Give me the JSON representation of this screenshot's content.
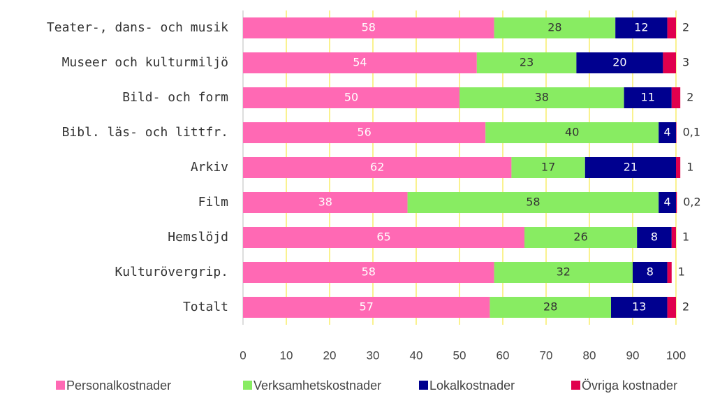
{
  "chart_data": {
    "type": "stacked-bar-horizontal",
    "categories": [
      "Teater-, dans- och musik",
      "Museer och kulturmiljö",
      "Bild- och form",
      "Bibl. läs- och littfr.",
      "Arkiv",
      "Film",
      "Hemslöjd",
      "Kulturövergrip.",
      "Totalt"
    ],
    "series": [
      {
        "name": "Personalkostnader",
        "color": "#ff69b4",
        "values": [
          58,
          54,
          50,
          56,
          62,
          38,
          65,
          58,
          57
        ]
      },
      {
        "name": "Verksamhetskostnader",
        "color": "#88ec62",
        "values": [
          28,
          23,
          38,
          40,
          17,
          58,
          26,
          32,
          28
        ]
      },
      {
        "name": "Lokalkostnader",
        "color": "#00008f",
        "values": [
          12,
          20,
          11,
          4,
          21,
          4,
          8,
          8,
          13
        ]
      },
      {
        "name": "Övriga kostnader",
        "color": "#e0004d",
        "values": [
          2,
          3,
          2,
          0.1,
          1,
          0.2,
          1,
          1,
          2
        ],
        "value_labels": [
          "2",
          "3",
          "2",
          "0,1",
          "1",
          "0,2",
          "1",
          "1",
          "2"
        ]
      }
    ],
    "xlim": [
      0,
      100
    ],
    "xticks": [
      0,
      10,
      20,
      30,
      40,
      50,
      60,
      70,
      80,
      90,
      100
    ],
    "grid": true,
    "legend": "bottom"
  }
}
